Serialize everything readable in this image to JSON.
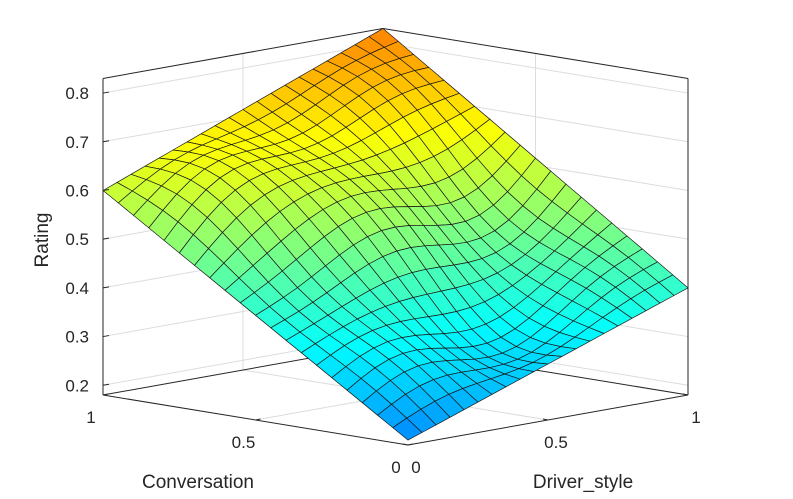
{
  "chart_data": {
    "type": "surface",
    "title": "",
    "xlabel": "Driver_style",
    "ylabel": "Conversation",
    "zlabel": "Rating",
    "xlim": [
      0,
      1
    ],
    "ylim": [
      0,
      1
    ],
    "zlim": [
      0.18,
      0.83
    ],
    "x_ticks": [
      "0",
      "0.5",
      "1"
    ],
    "y_ticks": [
      "0",
      "0.5",
      "1"
    ],
    "z_ticks": [
      "0.2",
      "0.3",
      "0.4",
      "0.5",
      "0.6",
      "0.7",
      "0.8"
    ],
    "grid": true,
    "colormap": "jet (cyan-green-yellow range)",
    "corner_values": {
      "driver0_conv0": 0.19,
      "driver1_conv0": 0.4,
      "driver0_conv1": 0.6,
      "driver1_conv1": 0.83
    }
  }
}
